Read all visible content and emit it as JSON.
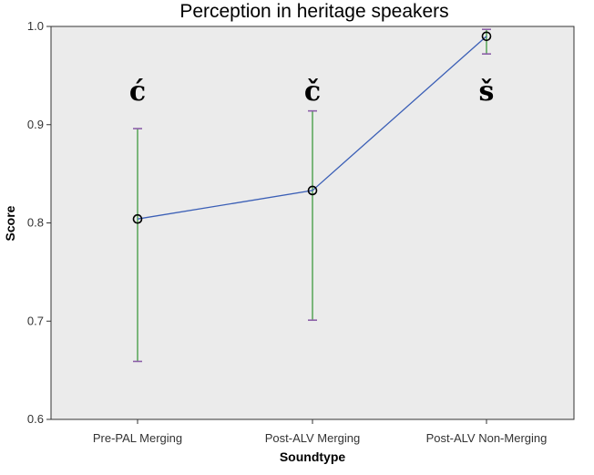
{
  "chart_data": {
    "type": "line",
    "title": "Perception in heritage speakers",
    "xlabel": "Soundtype",
    "ylabel": "Score",
    "ylim": [
      0.6,
      1.0
    ],
    "yticks": [
      "0.6",
      "0.7",
      "0.8",
      "0.9",
      "1.0"
    ],
    "categories": [
      "Pre-PAL Merging",
      "Post-ALV Merging",
      "Post-ALV Non-Merging"
    ],
    "series": [
      {
        "values": [
          0.804,
          0.833,
          0.99
        ],
        "error_low": [
          0.659,
          0.701,
          0.972
        ],
        "error_high": [
          0.896,
          0.914,
          0.997
        ]
      }
    ],
    "annotations": [
      "ć",
      "č",
      "š"
    ],
    "grid": false,
    "colors": {
      "line": "#3b5fb6",
      "errorbar": "#3f9a3f",
      "cap": "#8c5fa8",
      "background": "#ebebeb"
    }
  }
}
